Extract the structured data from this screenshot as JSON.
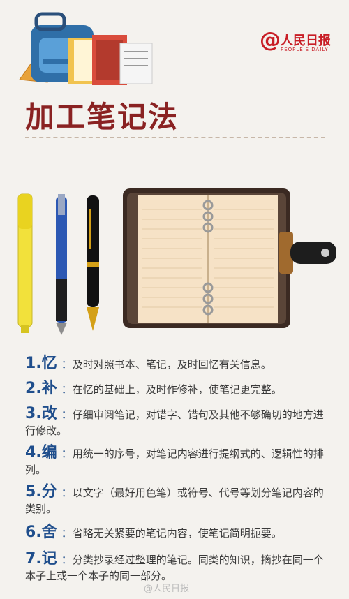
{
  "header": {
    "title": "加工笔记法",
    "brand_name": "人民日报",
    "brand_english": "PEOPLE'S DAILY",
    "brand_at": "@"
  },
  "items": [
    {
      "num": "1.忆",
      "text": "及时对照书本、笔记，及时回忆有关信息。"
    },
    {
      "num": "2.补",
      "text": "在忆的基础上，及时作修补，使笔记更完整。"
    },
    {
      "num": "3.改",
      "text": "仔细审阅笔记，对错字、错句及其他不够确切的地方进行修改。"
    },
    {
      "num": "4.编",
      "text": "用统一的序号，对笔记内容进行提纲式的、逻辑性的排列。"
    },
    {
      "num": "5.分",
      "text": "以文字（最好用色笔）或符号、代号等划分笔记内容的类别。"
    },
    {
      "num": "6.舍",
      "text": "省略无关紧要的笔记内容，使笔记简明扼要。"
    },
    {
      "num": "7.记",
      "text": "分类抄录经过整理的笔记。同类的知识，摘抄在同一个本子上或一个本子的同一部分。"
    }
  ],
  "watermark": "@人民日报",
  "colors": {
    "title": "#8a2222",
    "accent": "#1f4e8c",
    "brand": "#c81d25",
    "background": "#f4f2ee"
  }
}
